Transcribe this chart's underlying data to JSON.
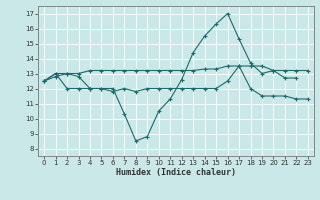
{
  "background_color": "#cbe8e8",
  "line_color": "#1a6b6b",
  "grid_color": "#b8d8d8",
  "xlabel": "Humidex (Indice chaleur)",
  "xlim": [
    -0.5,
    23.5
  ],
  "ylim": [
    7.5,
    17.5
  ],
  "yticks": [
    8,
    9,
    10,
    11,
    12,
    13,
    14,
    15,
    16,
    17
  ],
  "xticks": [
    0,
    1,
    2,
    3,
    4,
    5,
    6,
    7,
    8,
    9,
    10,
    11,
    12,
    13,
    14,
    15,
    16,
    17,
    18,
    19,
    20,
    21,
    22,
    23
  ],
  "series": [
    {
      "x": [
        0,
        1,
        2,
        3,
        4,
        5,
        6,
        7,
        8,
        9,
        10,
        11,
        12,
        13,
        14,
        15,
        16,
        17,
        18,
        19,
        20,
        21,
        22
      ],
      "y": [
        12.5,
        12.8,
        13.0,
        12.8,
        12.0,
        12.0,
        12.0,
        10.3,
        8.5,
        8.8,
        10.5,
        11.3,
        12.6,
        14.4,
        15.5,
        16.3,
        17.0,
        15.3,
        13.7,
        13.0,
        13.2,
        12.7,
        12.7
      ]
    },
    {
      "x": [
        0,
        1,
        2,
        3,
        4,
        5,
        6,
        7,
        8,
        9,
        10,
        11,
        12,
        13,
        14,
        15,
        16,
        17,
        18,
        19,
        20,
        21,
        22,
        23
      ],
      "y": [
        12.5,
        13.0,
        13.0,
        13.0,
        13.2,
        13.2,
        13.2,
        13.2,
        13.2,
        13.2,
        13.2,
        13.2,
        13.2,
        13.2,
        13.3,
        13.3,
        13.5,
        13.5,
        13.5,
        13.5,
        13.2,
        13.2,
        13.2,
        13.2
      ]
    },
    {
      "x": [
        0,
        1,
        2,
        3,
        4,
        5,
        6,
        7,
        8,
        9,
        10,
        11,
        12,
        13,
        14,
        15,
        16,
        17,
        18,
        19,
        20,
        21,
        22,
        23
      ],
      "y": [
        12.5,
        13.0,
        12.0,
        12.0,
        12.0,
        12.0,
        11.8,
        12.0,
        11.8,
        12.0,
        12.0,
        12.0,
        12.0,
        12.0,
        12.0,
        12.0,
        12.5,
        13.5,
        12.0,
        11.5,
        11.5,
        11.5,
        11.3,
        11.3
      ]
    }
  ]
}
